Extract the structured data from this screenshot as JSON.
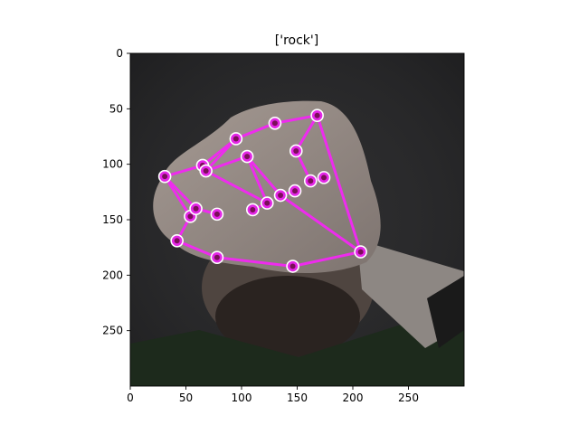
{
  "chart_data": {
    "type": "scatter",
    "title": "['rock']",
    "xlabel": "",
    "ylabel": "",
    "xlim": [
      0,
      300
    ],
    "ylim": [
      300,
      0
    ],
    "x_ticks": [
      0,
      50,
      100,
      150,
      200,
      250
    ],
    "y_ticks": [
      0,
      50,
      100,
      150,
      200,
      250
    ],
    "grid": false,
    "background": "hand photo (image)",
    "landmarks": [
      {
        "id": 0,
        "x": 207,
        "y": 179
      },
      {
        "id": 1,
        "x": 146,
        "y": 192
      },
      {
        "id": 2,
        "x": 78,
        "y": 184
      },
      {
        "id": 3,
        "x": 42,
        "y": 169
      },
      {
        "id": 4,
        "x": 54,
        "y": 147
      },
      {
        "id": 5,
        "x": 31,
        "y": 111
      },
      {
        "id": 6,
        "x": 59,
        "y": 140
      },
      {
        "id": 7,
        "x": 78,
        "y": 145
      },
      {
        "id": 8,
        "x": 65,
        "y": 101
      },
      {
        "id": 9,
        "x": 95,
        "y": 77
      },
      {
        "id": 10,
        "x": 130,
        "y": 63
      },
      {
        "id": 11,
        "x": 168,
        "y": 56
      },
      {
        "id": 12,
        "x": 68,
        "y": 106
      },
      {
        "id": 13,
        "x": 105,
        "y": 93
      },
      {
        "id": 14,
        "x": 123,
        "y": 135
      },
      {
        "id": 15,
        "x": 110,
        "y": 141
      },
      {
        "id": 16,
        "x": 135,
        "y": 128
      },
      {
        "id": 17,
        "x": 149,
        "y": 88
      },
      {
        "id": 18,
        "x": 148,
        "y": 124
      },
      {
        "id": 19,
        "x": 162,
        "y": 115
      },
      {
        "id": 20,
        "x": 174,
        "y": 112
      }
    ],
    "connections": [
      [
        0,
        1
      ],
      [
        1,
        2
      ],
      [
        2,
        3
      ],
      [
        3,
        4
      ],
      [
        4,
        5
      ],
      [
        5,
        6
      ],
      [
        6,
        7
      ],
      [
        5,
        8
      ],
      [
        8,
        9
      ],
      [
        9,
        10
      ],
      [
        10,
        11
      ],
      [
        11,
        0
      ],
      [
        12,
        9
      ],
      [
        12,
        13
      ],
      [
        12,
        14
      ],
      [
        13,
        14
      ],
      [
        14,
        15
      ],
      [
        16,
        0
      ],
      [
        16,
        13
      ],
      [
        11,
        17
      ],
      [
        17,
        19
      ],
      [
        19,
        20
      ],
      [
        16,
        18
      ]
    ],
    "colors": {
      "connection": "#ee2bee",
      "marker_fill": "#e327e6",
      "marker_center": "#7a0f58",
      "marker_edge": "#ffffff",
      "axis": "#000000"
    }
  }
}
